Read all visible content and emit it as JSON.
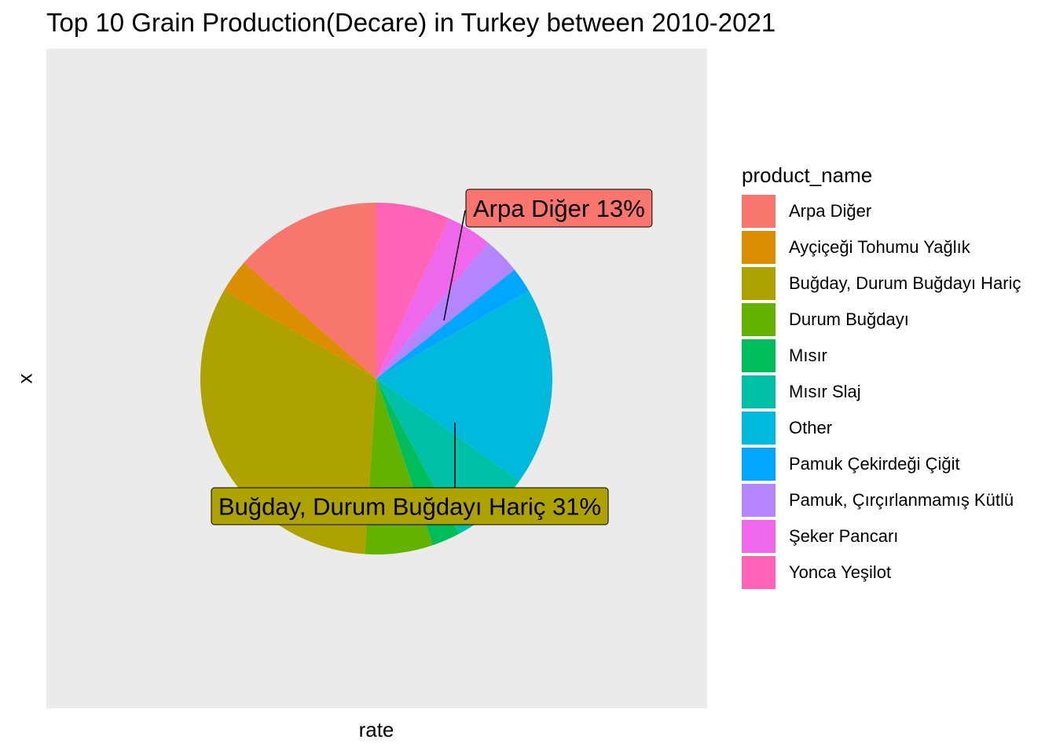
{
  "chart_data": {
    "type": "pie",
    "title": "Top 10 Grain Production(Decare) in Turkey between 2010-2021",
    "xlabel": "rate",
    "ylabel": "x",
    "legend_title": "product_name",
    "legend_position": "right",
    "slices": [
      {
        "name": "Arpa Diğer",
        "value": 13,
        "color": "#F8766D"
      },
      {
        "name": "Ayçiçeği Tohumu Yağlık",
        "value": 3,
        "color": "#DB8E00"
      },
      {
        "name": "Buğday, Durum Buğdayı Hariç",
        "value": 31,
        "color": "#AEA200"
      },
      {
        "name": "Durum Buğdayı",
        "value": 6,
        "color": "#64B200"
      },
      {
        "name": "Mısır",
        "value": 2.5,
        "color": "#00BD5C"
      },
      {
        "name": "Mısır Slaj",
        "value": 7,
        "color": "#00C1A7"
      },
      {
        "name": "Other",
        "value": 17.5,
        "color": "#00BADE"
      },
      {
        "name": "Pamuk Çekirdeği Çiğit",
        "value": 2.2,
        "color": "#00A6FF"
      },
      {
        "name": "Pamuk, Çırçırlanmamış Kütlü",
        "value": 3.3,
        "color": "#B385FF"
      },
      {
        "name": "Şeker Pancarı",
        "value": 4,
        "color": "#EF67EB"
      },
      {
        "name": "Yonca Yeşilot",
        "value": 6.5,
        "color": "#FF63B6"
      }
    ],
    "annotations": [
      {
        "text": "Arpa Diğer 13%",
        "slice": "Arpa Diğer"
      },
      {
        "text": "Buğday, Durum Buğdayı Hariç 31%",
        "slice": "Buğday, Durum Buğdayı Hariç"
      }
    ],
    "panel_background": "#EBEBEB",
    "grid": false
  }
}
